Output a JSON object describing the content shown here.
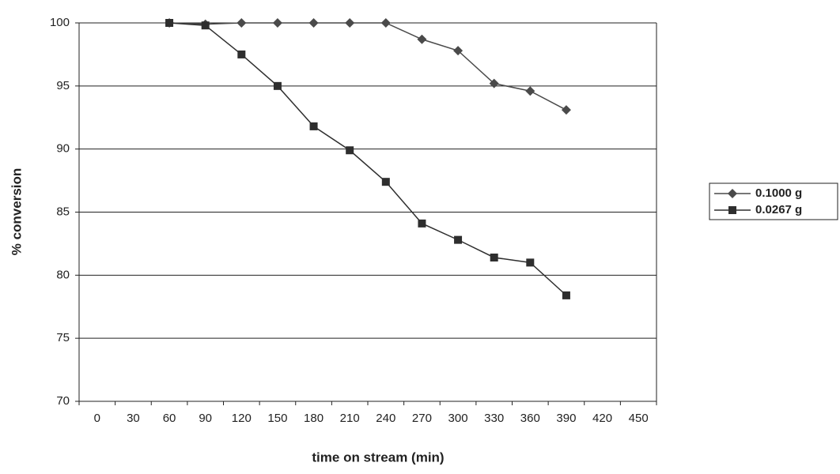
{
  "chart_data": {
    "type": "line",
    "x_label": "time on stream (min)",
    "y_label": "% conversion",
    "categories": [
      "0",
      "30",
      "60",
      "90",
      "120",
      "150",
      "180",
      "210",
      "240",
      "270",
      "300",
      "330",
      "360",
      "390",
      "420",
      "450"
    ],
    "series": [
      {
        "name": "0.1000 g",
        "color": "#4a4a4a",
        "marker": "diamond",
        "values": [
          null,
          null,
          100,
          99.9,
          100,
          100,
          100,
          100,
          100,
          98.7,
          97.8,
          95.2,
          94.6,
          93.1,
          null,
          null
        ]
      },
      {
        "name": "0.0267 g",
        "color": "#2e2e2e",
        "marker": "square",
        "values": [
          null,
          null,
          100,
          99.8,
          97.5,
          95,
          91.8,
          89.9,
          87.4,
          84.1,
          82.8,
          81.4,
          81,
          78.4,
          null,
          null
        ]
      }
    ],
    "ylim": [
      70,
      100
    ],
    "yticks": [
      70,
      75,
      80,
      85,
      90,
      95,
      100
    ],
    "grid": true,
    "legend": "right"
  }
}
